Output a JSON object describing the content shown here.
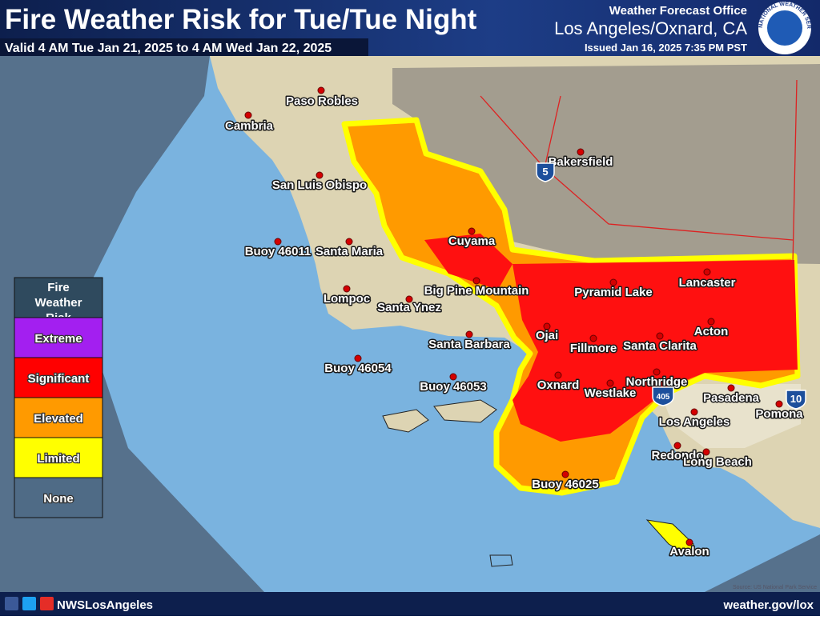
{
  "header": {
    "title": "Fire Weather Risk for Tue/Tue Night",
    "valid": "Valid 4 AM Tue Jan 21, 2025 to 4 AM Wed Jan 22, 2025",
    "office": "Weather Forecast Office",
    "location": "Los Angeles/Oxnard, CA",
    "issued": "Issued Jan 16, 2025 7:35 PM PST"
  },
  "logo": "NATIONAL WEATHER SERVICE",
  "legend": {
    "title": "Fire Weather Risk",
    "items": [
      {
        "label": "Extreme",
        "color": "#a31ff0"
      },
      {
        "label": "Significant",
        "color": "#ff0000"
      },
      {
        "label": "Elevated",
        "color": "#ff9a00"
      },
      {
        "label": "Limited",
        "color": "#ffff00"
      },
      {
        "label": "None",
        "color": "#4f6b86"
      }
    ]
  },
  "places": [
    "Paso Robles",
    "Cambria",
    "Bakersfield",
    "San Luis Obispo",
    "Cuyama",
    "Buoy 46011",
    "Santa Maria",
    "Big Pine Mountain",
    "Pyramid Lake",
    "Lancaster",
    "Lompoc",
    "Santa Ynez",
    "Ojai",
    "Acton",
    "Fillmore",
    "Santa Clarita",
    "Santa Barbara",
    "Buoy 46054",
    "Northridge",
    "Buoy 46053",
    "Oxnard",
    "Westlake",
    "Pasadena",
    "Pomona",
    "Los Angeles",
    "Redondo",
    "Long Beach",
    "Buoy 46025",
    "Avalon"
  ],
  "highways": [
    "5",
    "405",
    "10"
  ],
  "source": "Source: US National Park Service",
  "footer": {
    "handle": "NWSLosAngeles",
    "website": "weather.gov/lox"
  }
}
